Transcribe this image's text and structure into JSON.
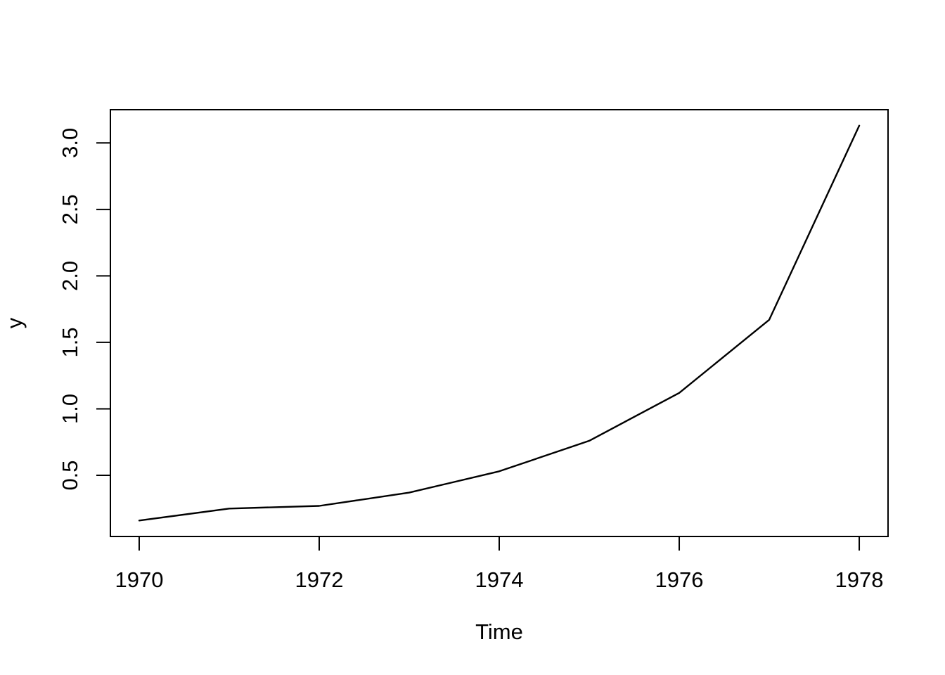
{
  "figure": {
    "background_color": "#ffffff",
    "foreground_color": "#000000"
  },
  "chart_data": {
    "type": "line",
    "title": "",
    "xlabel": "Time",
    "ylabel": "y",
    "x": [
      1970,
      1971,
      1972,
      1973,
      1974,
      1975,
      1976,
      1977,
      1978
    ],
    "series": [
      {
        "name": "y",
        "values": [
          0.16,
          0.25,
          0.27,
          0.37,
          0.53,
          0.76,
          1.12,
          1.67,
          3.13
        ]
      }
    ],
    "xlim": [
      1969.68,
      1978.32
    ],
    "ylim": [
      0.04,
      3.25
    ],
    "x_ticks": [
      1970,
      1972,
      1974,
      1976,
      1978
    ],
    "y_ticks": [
      0.5,
      1.0,
      1.5,
      2.0,
      2.5,
      3.0
    ],
    "y_tick_decimals": 1,
    "grid": "off",
    "legend": "none",
    "line_color": "#000000",
    "box": "full-frame"
  }
}
